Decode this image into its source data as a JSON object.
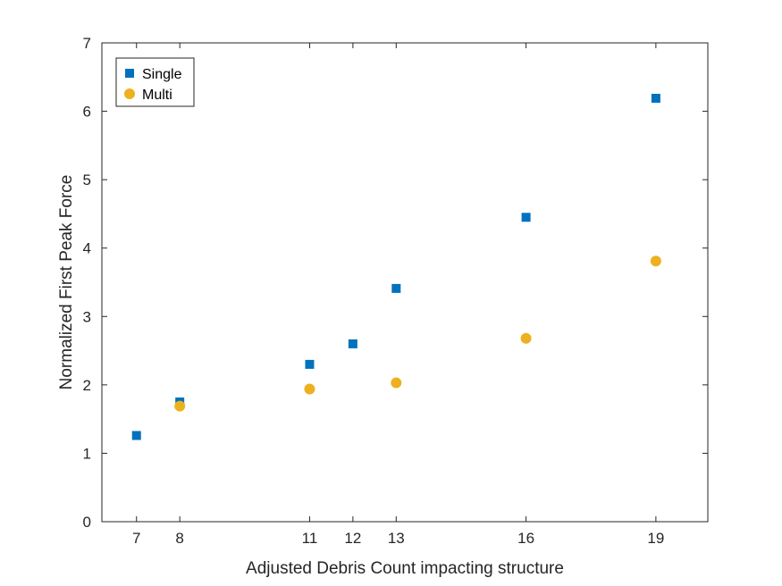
{
  "chart_data": {
    "type": "scatter",
    "title": "",
    "xlabel": "Adjusted Debris Count impacting structure",
    "ylabel": "Normalized First Peak Force",
    "xlim": [
      6.2,
      20.2
    ],
    "ylim": [
      0,
      7
    ],
    "xticks": [
      7,
      8,
      11,
      12,
      13,
      16,
      19
    ],
    "yticks": [
      0,
      1,
      2,
      3,
      4,
      5,
      6,
      7
    ],
    "grid": false,
    "legend_position": "top-left",
    "series": [
      {
        "name": "Single",
        "marker": "square",
        "color": "#0072BD",
        "points": [
          [
            7,
            1.26
          ],
          [
            8,
            1.75
          ],
          [
            11,
            2.3
          ],
          [
            12,
            2.6
          ],
          [
            13,
            3.41
          ],
          [
            16,
            4.45
          ],
          [
            19,
            6.19
          ]
        ]
      },
      {
        "name": "Multi",
        "marker": "circle",
        "color": "#EDB120",
        "points": [
          [
            8,
            1.69
          ],
          [
            11,
            1.94
          ],
          [
            13,
            2.03
          ],
          [
            16,
            2.68
          ],
          [
            19,
            3.81
          ]
        ]
      }
    ]
  }
}
